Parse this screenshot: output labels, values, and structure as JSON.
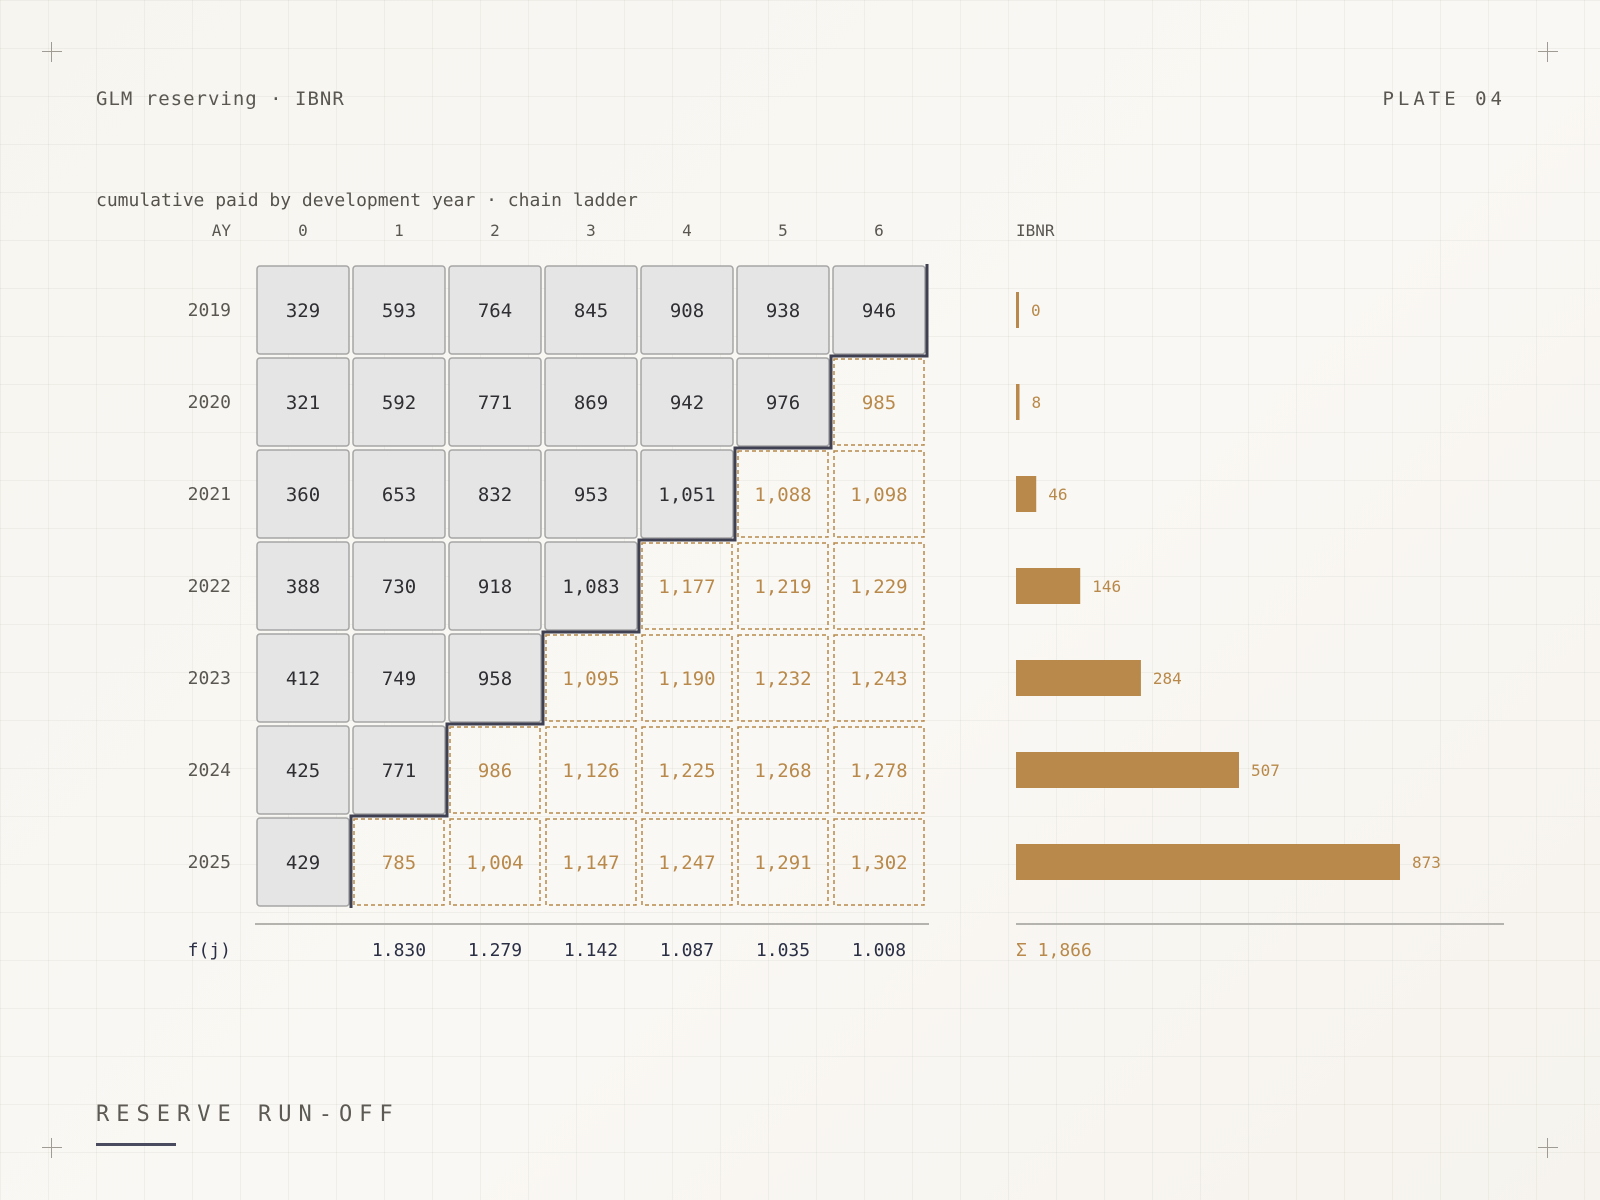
{
  "header": {
    "left": "GLM reserving · IBNR",
    "right": "PLATE 04"
  },
  "subtitle": "cumulative paid by development year · chain ladder",
  "footer": {
    "title": "RESERVE RUN-OFF"
  },
  "colors": {
    "observed_fill": "#e5e5e5",
    "observed_stroke": "#a5a5a5",
    "projected": "#b8894a",
    "diagonal": "#3f4152",
    "factor_text": "#2b2f45",
    "rule": "#b5b3ad"
  },
  "chart_data": {
    "type": "table",
    "corner_label": "AY",
    "ibnr_label": "IBNR",
    "factor_label": "f(j)",
    "development_years": [
      "0",
      "1",
      "2",
      "3",
      "4",
      "5",
      "6"
    ],
    "accident_years": [
      "2019",
      "2020",
      "2021",
      "2022",
      "2023",
      "2024",
      "2025"
    ],
    "triangle": [
      [
        "329",
        "593",
        "764",
        "845",
        "908",
        "938",
        "946"
      ],
      [
        "321",
        "592",
        "771",
        "869",
        "942",
        "976",
        "985"
      ],
      [
        "360",
        "653",
        "832",
        "953",
        "1,051",
        "1,088",
        "1,098"
      ],
      [
        "388",
        "730",
        "918",
        "1,083",
        "1,177",
        "1,219",
        "1,229"
      ],
      [
        "412",
        "749",
        "958",
        "1,095",
        "1,190",
        "1,232",
        "1,243"
      ],
      [
        "425",
        "771",
        "986",
        "1,126",
        "1,225",
        "1,268",
        "1,278"
      ],
      [
        "429",
        "785",
        "1,004",
        "1,147",
        "1,247",
        "1,291",
        "1,302"
      ]
    ],
    "observed_count": [
      7,
      6,
      5,
      4,
      3,
      2,
      1
    ],
    "factors": [
      "",
      "1.830",
      "1.279",
      "1.142",
      "1.087",
      "1.035",
      "1.008"
    ],
    "ibnr": {
      "values": [
        0,
        8,
        46,
        146,
        284,
        507,
        873
      ],
      "labels": [
        "0",
        "8",
        "46",
        "146",
        "284",
        "507",
        "873"
      ]
    },
    "ibnr_total": "Σ 1,866"
  }
}
